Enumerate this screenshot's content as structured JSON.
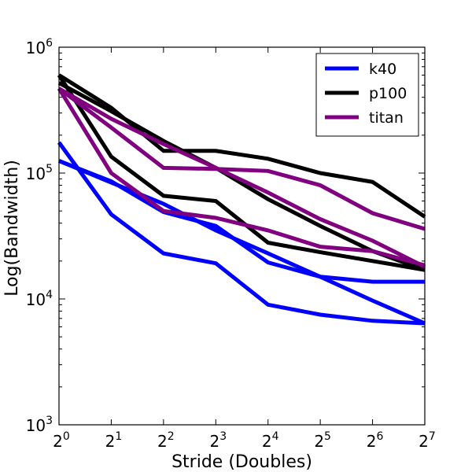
{
  "chart_data": {
    "type": "line",
    "title": "",
    "xlabel": "Stride (Doubles)",
    "ylabel": "Log(Bandwidth)",
    "x": [
      1,
      2,
      4,
      8,
      16,
      32,
      64,
      128
    ],
    "x_tick_labels": [
      {
        "base": "2",
        "exp": "0"
      },
      {
        "base": "2",
        "exp": "1"
      },
      {
        "base": "2",
        "exp": "2"
      },
      {
        "base": "2",
        "exp": "3"
      },
      {
        "base": "2",
        "exp": "4"
      },
      {
        "base": "2",
        "exp": "5"
      },
      {
        "base": "2",
        "exp": "6"
      },
      {
        "base": "2",
        "exp": "7"
      }
    ],
    "y_scale": "log",
    "ylim": [
      1000,
      1000000
    ],
    "y_tick_labels": [
      {
        "value": 1000,
        "base": "10",
        "exp": "3"
      },
      {
        "value": 10000,
        "base": "10",
        "exp": "4"
      },
      {
        "value": 100000,
        "base": "10",
        "exp": "5"
      },
      {
        "value": 1000000,
        "base": "10",
        "exp": "6"
      }
    ],
    "grid": false,
    "legend_position": "top-right",
    "legend": [
      {
        "label": "k40",
        "color": "#0000ff"
      },
      {
        "label": "p100",
        "color": "#000000"
      },
      {
        "label": "titan",
        "color": "#800080"
      }
    ],
    "series": [
      {
        "group": "k40",
        "color": "#0000ff",
        "values": [
          125000,
          84000,
          57000,
          35000,
          23000,
          15000,
          9700,
          6400
        ]
      },
      {
        "group": "k40",
        "color": "#0000ff",
        "values": [
          125000,
          86000,
          49000,
          38000,
          19500,
          15000,
          13700,
          13700
        ]
      },
      {
        "group": "k40",
        "color": "#0000ff",
        "values": [
          175000,
          47000,
          23000,
          19200,
          9000,
          7500,
          6700,
          6400
        ]
      },
      {
        "group": "p100",
        "color": "#000000",
        "values": [
          520000,
          310000,
          180000,
          110000,
          62000,
          38000,
          24000,
          17000
        ]
      },
      {
        "group": "p100",
        "color": "#000000",
        "values": [
          600000,
          330000,
          150000,
          150000,
          130000,
          100000,
          85000,
          45000
        ]
      },
      {
        "group": "p100",
        "color": "#000000",
        "values": [
          600000,
          135000,
          66000,
          60000,
          28000,
          23500,
          20000,
          17000
        ]
      },
      {
        "group": "titan",
        "color": "#800080",
        "values": [
          470000,
          270000,
          170000,
          110000,
          70000,
          43000,
          29000,
          18000
        ]
      },
      {
        "group": "titan",
        "color": "#800080",
        "values": [
          470000,
          230000,
          110000,
          108000,
          104000,
          80000,
          48000,
          36000
        ]
      },
      {
        "group": "titan",
        "color": "#800080",
        "values": [
          470000,
          100000,
          50000,
          44000,
          35000,
          26000,
          24000,
          18500
        ]
      }
    ]
  }
}
